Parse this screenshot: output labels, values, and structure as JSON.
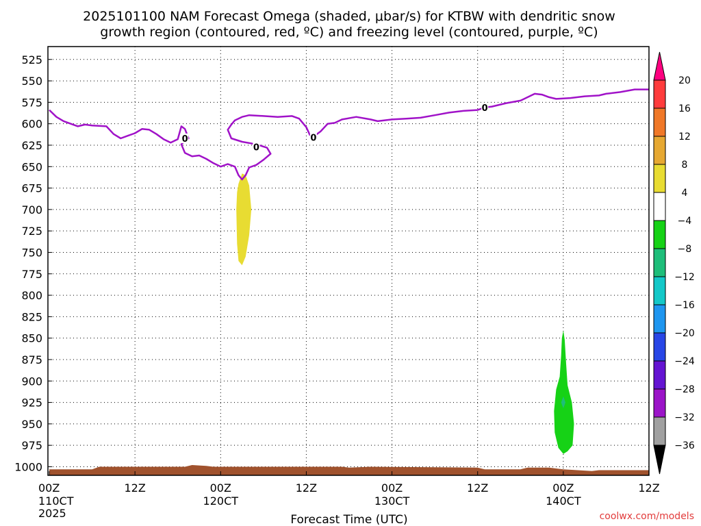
{
  "chart_data": {
    "type": "time-height cross section",
    "title_line1": "2025101100 NAM Forecast Omega (shaded, μbar/s) for KTBW with dendritic snow",
    "title_line2": "growth region (contoured, red, ºC) and freezing level (contoured, purple, ºC)",
    "xlabel": "Forecast Time (UTC)",
    "credit": "coolwx.com/models",
    "x_ticks": [
      {
        "h": 0,
        "line1": "00Z",
        "line2": "110CT",
        "line3": "2025"
      },
      {
        "h": 12,
        "line1": "12Z",
        "line2": "",
        "line3": ""
      },
      {
        "h": 24,
        "line1": "00Z",
        "line2": "120CT",
        "line3": ""
      },
      {
        "h": 36,
        "line1": "12Z",
        "line2": "",
        "line3": ""
      },
      {
        "h": 48,
        "line1": "00Z",
        "line2": "130CT",
        "line3": ""
      },
      {
        "h": 60,
        "line1": "12Z",
        "line2": "",
        "line3": ""
      },
      {
        "h": 72,
        "line1": "00Z",
        "line2": "140CT",
        "line3": ""
      },
      {
        "h": 84,
        "line1": "12Z",
        "line2": "",
        "line3": ""
      }
    ],
    "xlim_hours": [
      0,
      84
    ],
    "y_ticks": [
      525,
      550,
      575,
      600,
      625,
      650,
      675,
      700,
      725,
      750,
      775,
      800,
      825,
      850,
      875,
      900,
      925,
      950,
      975,
      1000
    ],
    "ylim_hPa": [
      510,
      1010
    ],
    "grid": "dotted",
    "colorbar": {
      "labels": [
        "20",
        "16",
        "12",
        "8",
        "4",
        "−4",
        "−8",
        "−12",
        "−16",
        "−20",
        "−24",
        "−28",
        "−32",
        "−36"
      ],
      "colors": [
        "#ff0080",
        "#ff3c3c",
        "#f07828",
        "#e6a832",
        "#e8dc32",
        "#ffffff",
        "#16d216",
        "#1ebe7a",
        "#14c8c8",
        "#1e96f0",
        "#2846e6",
        "#6414d2",
        "#9b14c8",
        "#a0a0a0",
        "#000000"
      ]
    },
    "freezing_level": {
      "color": "#a012c8",
      "label": "0",
      "label_positions": [
        {
          "h": 19,
          "p": 617
        },
        {
          "h": 29,
          "p": 627
        },
        {
          "h": 37,
          "p": 616
        },
        {
          "h": 61,
          "p": 581
        }
      ],
      "points": [
        [
          0,
          584
        ],
        [
          1,
          592
        ],
        [
          2,
          597
        ],
        [
          3,
          600
        ],
        [
          4,
          603
        ],
        [
          5,
          601
        ],
        [
          6,
          602
        ],
        [
          8,
          603
        ],
        [
          9,
          612
        ],
        [
          10,
          617
        ],
        [
          11,
          614
        ],
        [
          12,
          611
        ],
        [
          13,
          606
        ],
        [
          14,
          607
        ],
        [
          15,
          612
        ],
        [
          16,
          618
        ],
        [
          17,
          622
        ],
        [
          18,
          618
        ],
        [
          18.5,
          603
        ],
        [
          19,
          606
        ],
        [
          19.5,
          617
        ],
        [
          19,
          620
        ],
        [
          18.5,
          624
        ],
        [
          19,
          634
        ],
        [
          20,
          638
        ],
        [
          21,
          637
        ],
        [
          22,
          641
        ],
        [
          23,
          646
        ],
        [
          24,
          650
        ],
        [
          25,
          647
        ],
        [
          26,
          650
        ],
        [
          26.5,
          660
        ],
        [
          27,
          665
        ],
        [
          27.5,
          660
        ],
        [
          28,
          651
        ],
        [
          29,
          648
        ],
        [
          30,
          642
        ],
        [
          31,
          635
        ],
        [
          30.5,
          628
        ],
        [
          29,
          624
        ],
        [
          27,
          621
        ],
        [
          25.5,
          617
        ],
        [
          25,
          607
        ],
        [
          25.5,
          601
        ],
        [
          26,
          596
        ],
        [
          27,
          592
        ],
        [
          28,
          590
        ],
        [
          30,
          591
        ],
        [
          32,
          592
        ],
        [
          34,
          591
        ],
        [
          35,
          594
        ],
        [
          36,
          604
        ],
        [
          36.5,
          613
        ],
        [
          37,
          615
        ],
        [
          38,
          609
        ],
        [
          39,
          600
        ],
        [
          40,
          599
        ],
        [
          41,
          595
        ],
        [
          43,
          592
        ],
        [
          45,
          595
        ],
        [
          46,
          597
        ],
        [
          48,
          595
        ],
        [
          50,
          594
        ],
        [
          52,
          593
        ],
        [
          54,
          590
        ],
        [
          56,
          587
        ],
        [
          58,
          585
        ],
        [
          60,
          584
        ],
        [
          61,
          581
        ],
        [
          62,
          580
        ],
        [
          64,
          576
        ],
        [
          66,
          573
        ],
        [
          68,
          565
        ],
        [
          69,
          566
        ],
        [
          70,
          569
        ],
        [
          71,
          571
        ],
        [
          73,
          570
        ],
        [
          75,
          568
        ],
        [
          77,
          567
        ],
        [
          78,
          565
        ],
        [
          80,
          563
        ],
        [
          82,
          560
        ],
        [
          84,
          560
        ]
      ]
    },
    "shaded_regions": [
      {
        "color": "#e8dc32",
        "points": [
          [
            26.5,
            670
          ],
          [
            27,
            658
          ],
          [
            27.5,
            660
          ],
          [
            28,
            672
          ],
          [
            28.3,
            700
          ],
          [
            28,
            730
          ],
          [
            27.5,
            755
          ],
          [
            27,
            765
          ],
          [
            26.5,
            760
          ],
          [
            26.3,
            740
          ],
          [
            26.2,
            700
          ],
          [
            26.3,
            680
          ]
        ]
      },
      {
        "color": "#16d216",
        "points": [
          [
            72,
            841
          ],
          [
            72.2,
            852
          ],
          [
            72.4,
            880
          ],
          [
            72.6,
            905
          ],
          [
            73.2,
            925
          ],
          [
            73.5,
            950
          ],
          [
            73.3,
            975
          ],
          [
            72.6,
            982
          ],
          [
            72,
            985
          ],
          [
            71.3,
            978
          ],
          [
            70.8,
            960
          ],
          [
            70.7,
            935
          ],
          [
            71,
            910
          ],
          [
            71.5,
            895
          ],
          [
            71.7,
            870
          ],
          [
            71.8,
            850
          ]
        ]
      },
      {
        "color": "#1ebe7a",
        "points": [
          [
            72,
            918
          ],
          [
            72.3,
            925
          ],
          [
            72,
            932
          ],
          [
            71.7,
            925
          ]
        ]
      }
    ],
    "terrain": {
      "color": "#a0522d",
      "points": [
        [
          0,
          1003
        ],
        [
          6,
          1003
        ],
        [
          7,
          1000
        ],
        [
          19,
          1000
        ],
        [
          20,
          998
        ],
        [
          22,
          999
        ],
        [
          23,
          1000
        ],
        [
          41,
          1000
        ],
        [
          42,
          1001
        ],
        [
          45,
          1000
        ],
        [
          60,
          1001
        ],
        [
          61,
          1003
        ],
        [
          66,
          1003
        ],
        [
          67,
          1001
        ],
        [
          70,
          1001
        ],
        [
          71,
          1002
        ],
        [
          72,
          1003
        ],
        [
          74,
          1004
        ],
        [
          76,
          1005
        ],
        [
          77,
          1004
        ],
        [
          84,
          1004
        ]
      ]
    }
  }
}
